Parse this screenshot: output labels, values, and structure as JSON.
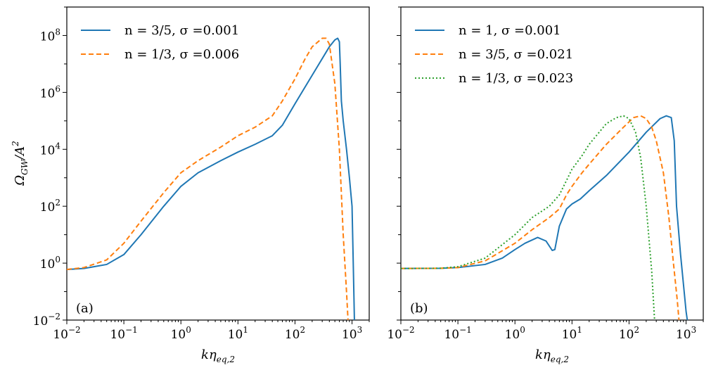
{
  "chart_data": [
    {
      "type": "line",
      "panel_label": "(a)",
      "xscale": "log",
      "yscale": "log",
      "xlim": [
        0.01,
        2000
      ],
      "ylim": [
        0.01,
        1000000000.0
      ],
      "xlabel": "kη_{eq,2}",
      "ylabel": "Ω_{GW}/A^2",
      "x_ticks": [
        "10^-2",
        "10^-1",
        "10^0",
        "10^1",
        "10^2",
        "10^3"
      ],
      "y_ticks": [
        "10^-2",
        "10^0",
        "10^2",
        "10^4",
        "10^6",
        "10^8"
      ],
      "legend_position": "upper-left",
      "series": [
        {
          "name": "n = 3/5, σ =0.001",
          "color": "#1f77b4",
          "style": "solid",
          "x": [
            0.01,
            0.02,
            0.05,
            0.1,
            0.2,
            0.5,
            1,
            2,
            5,
            10,
            20,
            40,
            60,
            100,
            200,
            400,
            500,
            560,
            600,
            620,
            650,
            700,
            800,
            900,
            1000,
            1050,
            1100
          ],
          "y": [
            0.6,
            0.65,
            0.9,
            2,
            10,
            100,
            500,
            1500,
            4000,
            8000,
            15000,
            30000,
            70000,
            400000,
            4000000,
            40000000,
            70000000,
            80000000,
            60000000,
            10000000,
            500000,
            100000,
            10000,
            1000,
            100,
            1,
            0.01
          ]
        },
        {
          "name": "n = 1/3, σ =0.006",
          "color": "#ff7f0e",
          "style": "dashed",
          "x": [
            0.01,
            0.02,
            0.05,
            0.1,
            0.2,
            0.5,
            1,
            2,
            5,
            10,
            20,
            40,
            60,
            100,
            150,
            200,
            300,
            350,
            400,
            500,
            600,
            700,
            800,
            850
          ],
          "y": [
            0.6,
            0.7,
            1.3,
            5,
            30,
            300,
            1500,
            4000,
            12000,
            30000,
            60000,
            150000,
            500000,
            3000000,
            15000000,
            40000000,
            80000000,
            80000000,
            50000000,
            2000000,
            10000,
            10,
            0.1,
            0.01
          ]
        }
      ]
    },
    {
      "type": "line",
      "panel_label": "(b)",
      "xscale": "log",
      "yscale": "log",
      "xlim": [
        0.01,
        2000
      ],
      "ylim": [
        0.01,
        1000000000.0
      ],
      "xlabel": "kη_{eq,2}",
      "x_ticks": [
        "10^-2",
        "10^-1",
        "10^0",
        "10^1",
        "10^2",
        "10^3"
      ],
      "legend_position": "upper-left",
      "series": [
        {
          "name": "n = 1, σ =0.001",
          "color": "#1f77b4",
          "style": "solid",
          "x": [
            0.01,
            0.05,
            0.1,
            0.3,
            0.6,
            1,
            1.5,
            2.5,
            3.5,
            4.5,
            5,
            6,
            8,
            10,
            14,
            20,
            40,
            100,
            200,
            350,
            450,
            550,
            620,
            680,
            800,
            1000,
            1050
          ],
          "y": [
            0.65,
            0.66,
            0.7,
            0.9,
            1.5,
            3,
            5,
            8,
            6,
            2.8,
            3,
            20,
            80,
            120,
            180,
            350,
            1200,
            8000,
            40000,
            120000,
            150000,
            130000,
            20000,
            100,
            2,
            0.02,
            0.01
          ]
        },
        {
          "name": "n = 3/5, σ =0.021",
          "color": "#ff7f0e",
          "style": "dashed",
          "x": [
            0.01,
            0.05,
            0.1,
            0.3,
            1,
            2,
            4,
            6,
            8,
            10,
            15,
            20,
            40,
            80,
            120,
            160,
            200,
            250,
            300,
            400,
            500,
            600,
            700,
            750
          ],
          "y": [
            0.65,
            0.66,
            0.7,
            1.2,
            5,
            15,
            40,
            80,
            250,
            500,
            1500,
            3000,
            15000,
            60000,
            130000,
            150000,
            120000,
            60000,
            20000,
            1500,
            40,
            1,
            0.05,
            0.01
          ]
        },
        {
          "name": "n = 1/3, σ =0.023",
          "color": "#2ca02c",
          "style": "dotted",
          "x": [
            0.01,
            0.05,
            0.1,
            0.3,
            1,
            2,
            4,
            6,
            8,
            10,
            15,
            20,
            40,
            60,
            80,
            100,
            130,
            160,
            200,
            250,
            280
          ],
          "y": [
            0.65,
            0.66,
            0.75,
            1.5,
            10,
            40,
            100,
            250,
            800,
            2000,
            6000,
            15000,
            80000,
            130000,
            150000,
            120000,
            40000,
            5000,
            100,
            0.5,
            0.01
          ]
        }
      ]
    }
  ]
}
